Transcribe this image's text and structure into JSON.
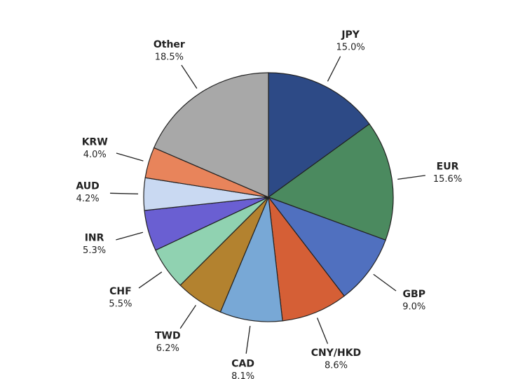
{
  "chart_data": {
    "type": "pie",
    "categories": [
      "JPY",
      "EUR",
      "GBP",
      "CNY/HKD",
      "CAD",
      "TWD",
      "CHF",
      "INR",
      "AUD",
      "KRW",
      "Other"
    ],
    "values": [
      15.0,
      15.6,
      9.0,
      8.6,
      8.1,
      6.2,
      5.5,
      5.3,
      4.2,
      4.0,
      18.5
    ],
    "value_labels": [
      "15.0%",
      "15.6%",
      "9.0%",
      "8.6%",
      "8.1%",
      "6.2%",
      "5.5%",
      "5.3%",
      "4.2%",
      "4.0%",
      "18.5%"
    ],
    "colors": [
      "#2d4a86",
      "#4b8a5f",
      "#5070bf",
      "#d55f36",
      "#78a8d6",
      "#b3822f",
      "#90d2b1",
      "#6a5fd2",
      "#c9d9f2",
      "#e8845b",
      "#a8a8a8"
    ]
  }
}
